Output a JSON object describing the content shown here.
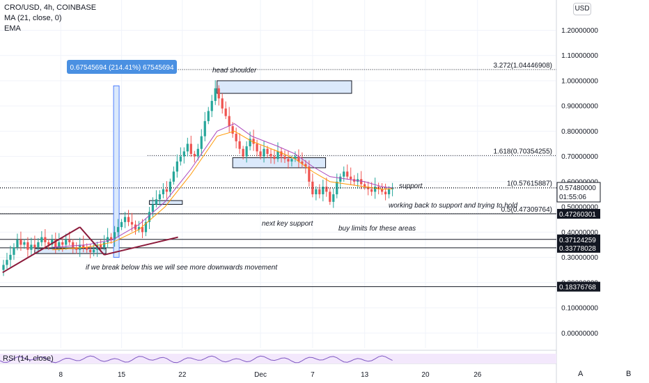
{
  "legend": {
    "symbol": "CRO/USD, 4h, COINBASE",
    "ma": "MA (21, close, 0)",
    "ema": "EMA"
  },
  "currency_button": "USD",
  "rsi_label": "RSI (14, close)",
  "footer": {
    "a": "A",
    "b": "B"
  },
  "colors": {
    "up": "#26a69a",
    "down": "#ef5350",
    "ma": "#ab47bc",
    "ema": "#ff9800",
    "zone_fill": "#dbe9fb",
    "zone_stroke": "#131722",
    "measure": "#2962ff",
    "trend": "#8b1a3a",
    "rsi": "#7e57c2"
  },
  "chart_data": {
    "type": "candlestick",
    "symbol": "CRO/USD",
    "interval": "4h",
    "exchange": "COINBASE",
    "y_axis": {
      "ticks": [
        "1.20000000",
        "1.10000000",
        "1.00000000",
        "0.90000000",
        "0.80000000",
        "0.70000000",
        "0.60000000",
        "0.50000000",
        "0.40000000",
        "0.30000000",
        "0.20000000",
        "0.10000000",
        "0.00000000"
      ],
      "tick_values": [
        1.2,
        1.1,
        1.0,
        0.9,
        0.8,
        0.7,
        0.6,
        0.5,
        0.4,
        0.3,
        0.2,
        0.1,
        0.0
      ],
      "range": [
        -0.06,
        1.32
      ]
    },
    "x_axis": {
      "labels": [
        "8",
        "15",
        "22",
        "Dec",
        "7",
        "13",
        "20",
        "26"
      ],
      "label_day_index": [
        7,
        14,
        21,
        30,
        36,
        42,
        49,
        55
      ]
    },
    "day_range": [
      0,
      64
    ],
    "price_series_close": [
      [
        0.0,
        0.25
      ],
      [
        0.4,
        0.27
      ],
      [
        0.8,
        0.29
      ],
      [
        1.2,
        0.31
      ],
      [
        1.6,
        0.34
      ],
      [
        2.0,
        0.37
      ],
      [
        2.4,
        0.35
      ],
      [
        2.8,
        0.36
      ],
      [
        3.2,
        0.33
      ],
      [
        3.6,
        0.35
      ],
      [
        4.0,
        0.34
      ],
      [
        4.4,
        0.36
      ],
      [
        4.8,
        0.38
      ],
      [
        5.2,
        0.36
      ],
      [
        5.6,
        0.35
      ],
      [
        6.0,
        0.37
      ],
      [
        6.4,
        0.34
      ],
      [
        6.8,
        0.36
      ],
      [
        7.2,
        0.35
      ],
      [
        7.6,
        0.37
      ],
      [
        8.0,
        0.36
      ],
      [
        8.4,
        0.34
      ],
      [
        8.8,
        0.33
      ],
      [
        9.2,
        0.35
      ],
      [
        9.6,
        0.34
      ],
      [
        10.0,
        0.33
      ],
      [
        10.4,
        0.32
      ],
      [
        10.8,
        0.33
      ],
      [
        11.2,
        0.35
      ],
      [
        11.6,
        0.34
      ],
      [
        12.0,
        0.36
      ],
      [
        12.4,
        0.38
      ],
      [
        12.8,
        0.37
      ],
      [
        13.2,
        0.4
      ],
      [
        13.6,
        0.42
      ],
      [
        14.0,
        0.44
      ],
      [
        14.4,
        0.46
      ],
      [
        14.8,
        0.44
      ],
      [
        15.2,
        0.43
      ],
      [
        15.6,
        0.41
      ],
      [
        16.0,
        0.42
      ],
      [
        16.4,
        0.4
      ],
      [
        16.8,
        0.44
      ],
      [
        17.2,
        0.48
      ],
      [
        17.6,
        0.51
      ],
      [
        18.0,
        0.53
      ],
      [
        18.4,
        0.55
      ],
      [
        18.8,
        0.57
      ],
      [
        19.2,
        0.56
      ],
      [
        19.6,
        0.6
      ],
      [
        20.0,
        0.64
      ],
      [
        20.4,
        0.68
      ],
      [
        20.8,
        0.7
      ],
      [
        21.2,
        0.72
      ],
      [
        21.6,
        0.75
      ],
      [
        22.0,
        0.71
      ],
      [
        22.4,
        0.7
      ],
      [
        22.8,
        0.73
      ],
      [
        23.2,
        0.78
      ],
      [
        23.6,
        0.84
      ],
      [
        24.0,
        0.88
      ],
      [
        24.4,
        0.92
      ],
      [
        24.8,
        0.97
      ],
      [
        25.2,
        0.93
      ],
      [
        25.6,
        0.89
      ],
      [
        26.0,
        0.86
      ],
      [
        26.4,
        0.82
      ],
      [
        26.8,
        0.79
      ],
      [
        27.2,
        0.76
      ],
      [
        27.6,
        0.73
      ],
      [
        28.0,
        0.7
      ],
      [
        28.4,
        0.74
      ],
      [
        28.8,
        0.77
      ],
      [
        29.2,
        0.75
      ],
      [
        29.6,
        0.72
      ],
      [
        30.0,
        0.7
      ],
      [
        30.4,
        0.73
      ],
      [
        30.8,
        0.71
      ],
      [
        31.2,
        0.7
      ],
      [
        31.6,
        0.69
      ],
      [
        32.0,
        0.72
      ],
      [
        32.4,
        0.7
      ],
      [
        32.8,
        0.69
      ],
      [
        33.2,
        0.68
      ],
      [
        33.6,
        0.69
      ],
      [
        34.0,
        0.7
      ],
      [
        34.4,
        0.68
      ],
      [
        34.8,
        0.67
      ],
      [
        35.2,
        0.66
      ],
      [
        35.6,
        0.6
      ],
      [
        36.0,
        0.55
      ],
      [
        36.4,
        0.57
      ],
      [
        36.8,
        0.55
      ],
      [
        37.2,
        0.58
      ],
      [
        37.6,
        0.56
      ],
      [
        38.0,
        0.52
      ],
      [
        38.4,
        0.55
      ],
      [
        38.8,
        0.6
      ],
      [
        39.2,
        0.62
      ],
      [
        39.6,
        0.64
      ],
      [
        40.0,
        0.62
      ],
      [
        40.4,
        0.61
      ],
      [
        40.8,
        0.6
      ],
      [
        41.2,
        0.61
      ],
      [
        41.6,
        0.59
      ],
      [
        42.0,
        0.58
      ],
      [
        42.4,
        0.57
      ],
      [
        42.8,
        0.56
      ],
      [
        43.2,
        0.58
      ],
      [
        43.6,
        0.57
      ],
      [
        44.0,
        0.56
      ],
      [
        44.4,
        0.55
      ],
      [
        44.8,
        0.57
      ],
      [
        45.2,
        0.575
      ]
    ],
    "ma21": [
      [
        6.0,
        0.34
      ],
      [
        10.0,
        0.35
      ],
      [
        13.0,
        0.37
      ],
      [
        16.0,
        0.43
      ],
      [
        19.0,
        0.52
      ],
      [
        22.0,
        0.65
      ],
      [
        25.0,
        0.8
      ],
      [
        27.0,
        0.83
      ],
      [
        29.0,
        0.78
      ],
      [
        32.0,
        0.74
      ],
      [
        34.0,
        0.71
      ],
      [
        36.0,
        0.66
      ],
      [
        38.0,
        0.62
      ],
      [
        40.0,
        0.61
      ],
      [
        42.0,
        0.6
      ],
      [
        44.0,
        0.58
      ],
      [
        45.2,
        0.575
      ]
    ],
    "ema": [
      [
        6.0,
        0.33
      ],
      [
        10.0,
        0.34
      ],
      [
        13.0,
        0.36
      ],
      [
        16.0,
        0.41
      ],
      [
        19.0,
        0.5
      ],
      [
        22.0,
        0.63
      ],
      [
        25.0,
        0.78
      ],
      [
        27.0,
        0.8
      ],
      [
        29.0,
        0.76
      ],
      [
        32.0,
        0.72
      ],
      [
        34.0,
        0.69
      ],
      [
        36.0,
        0.64
      ],
      [
        38.0,
        0.6
      ],
      [
        40.0,
        0.59
      ],
      [
        42.0,
        0.58
      ],
      [
        44.0,
        0.57
      ],
      [
        45.2,
        0.572
      ]
    ],
    "last_price": "0.57480000",
    "last_price_value": 0.5748,
    "countdown": "01:55:06",
    "horizontal_levels": [
      {
        "value": 0.472603,
        "label": "0.47260301"
      },
      {
        "value": 0.37124259,
        "label": "0.37124259"
      },
      {
        "value": 0.33778028,
        "label": "0.33778028"
      },
      {
        "value": 0.18376768,
        "label": "0.18376768"
      }
    ],
    "fib_levels": [
      {
        "value": 1.04446908,
        "label": "3.272(1.04446908)",
        "start_day": 20.5
      },
      {
        "value": 0.70354255,
        "label": "1.618(0.70354255)",
        "start_day": 17.0
      },
      {
        "value": 0.57615887,
        "label": "1(0.57615887)",
        "start_day": 0.0
      },
      {
        "value": 0.47309764,
        "label": "0.5(0.47309764)",
        "start_day": 0.0
      }
    ],
    "zones": [
      {
        "x0": 25.0,
        "x1": 40.5,
        "y0": 0.95,
        "y1": 1.0
      },
      {
        "x0": 26.8,
        "x1": 37.5,
        "y0": 0.655,
        "y1": 0.695
      },
      {
        "x0": 17.2,
        "x1": 21.0,
        "y0": 0.51,
        "y1": 0.525
      },
      {
        "x0": 4.0,
        "x1": 12.2,
        "y0": 0.315,
        "y1": 0.335
      }
    ],
    "measure": {
      "x": 13.4,
      "y0": 0.3,
      "y1": 0.98,
      "label": "0.67545694 (214.41%) 67545694"
    },
    "annotations": [
      "head shoulder",
      "support",
      "working back to support and trying to hold",
      "next key support",
      "buy limits for these areas",
      "if we break below this we will see more downwards movement"
    ],
    "rsi": {
      "period": 14,
      "source": "close"
    }
  }
}
